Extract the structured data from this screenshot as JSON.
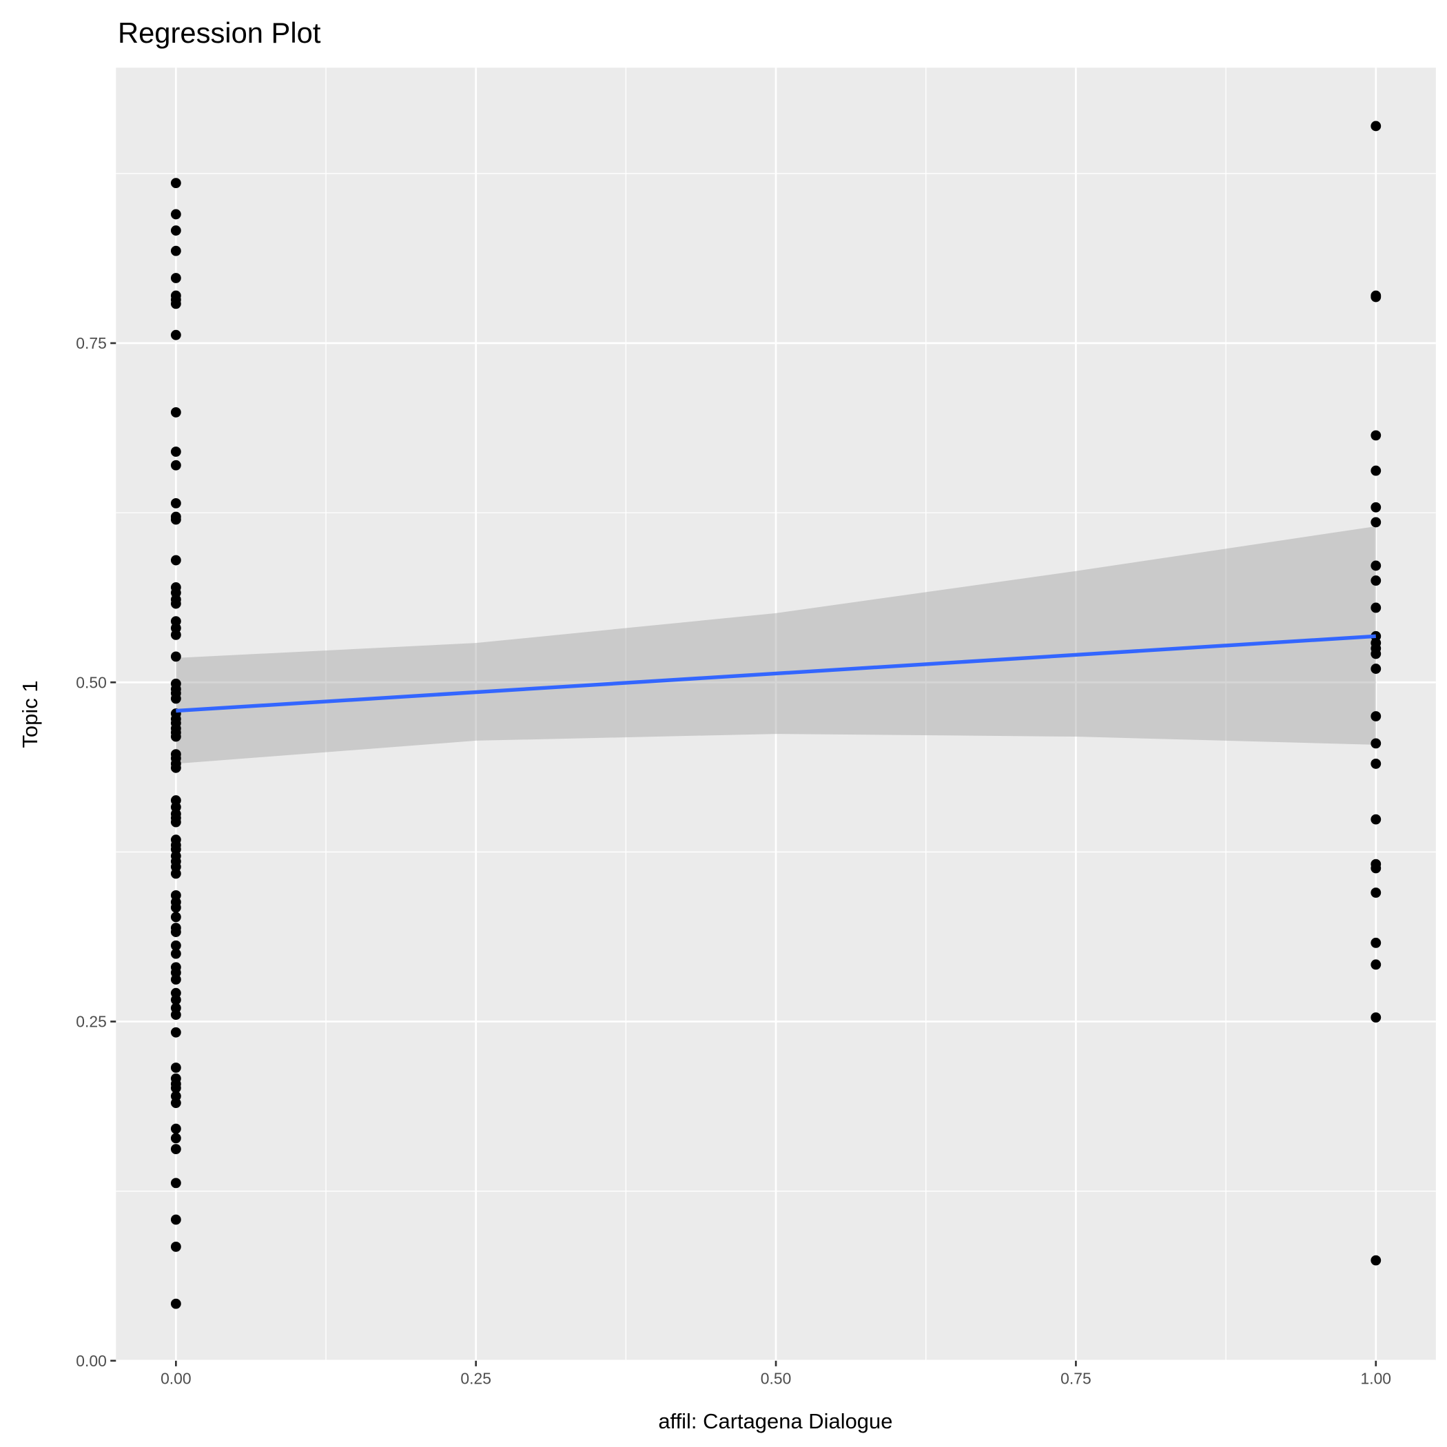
{
  "chart_data": {
    "type": "scatter",
    "title": "Regression Plot",
    "xlabel": "affil: Cartagena Dialogue",
    "ylabel": "Topic 1",
    "xlim": [
      -0.05,
      1.05
    ],
    "ylim": [
      0.0,
      0.953
    ],
    "grid": true,
    "legend": "none",
    "x_ticks": [
      0.0,
      0.25,
      0.5,
      0.75,
      1.0
    ],
    "x_tick_labels": [
      "0.00",
      "0.25",
      "0.50",
      "0.75",
      "1.00"
    ],
    "y_ticks": [
      0.0,
      0.25,
      0.5,
      0.75
    ],
    "y_tick_labels": [
      "0.00",
      "0.25",
      "0.50",
      "0.75"
    ],
    "colors": {
      "panel": "#ebebeb",
      "grid": "#ffffff",
      "points": "#000000",
      "line": "#3366ff",
      "ribbon": "#c0c0c0"
    },
    "series": [
      {
        "name": "x = 0",
        "x": 0,
        "y": [
          0.868,
          0.845,
          0.833,
          0.818,
          0.798,
          0.785,
          0.782,
          0.779,
          0.756,
          0.699,
          0.67,
          0.66,
          0.632,
          0.622,
          0.62,
          0.59,
          0.57,
          0.566,
          0.561,
          0.558,
          0.545,
          0.54,
          0.535,
          0.519,
          0.499,
          0.495,
          0.492,
          0.488,
          0.477,
          0.473,
          0.47,
          0.466,
          0.463,
          0.46,
          0.447,
          0.444,
          0.44,
          0.437,
          0.413,
          0.408,
          0.403,
          0.4,
          0.397,
          0.384,
          0.38,
          0.377,
          0.372,
          0.368,
          0.364,
          0.359,
          0.343,
          0.338,
          0.334,
          0.327,
          0.319,
          0.316,
          0.306,
          0.3,
          0.29,
          0.286,
          0.281,
          0.271,
          0.266,
          0.26,
          0.255,
          0.242,
          0.216,
          0.208,
          0.204,
          0.201,
          0.195,
          0.19,
          0.171,
          0.164,
          0.156,
          0.131,
          0.104,
          0.084,
          0.042
        ]
      },
      {
        "name": "x = 1",
        "x": 1,
        "y": [
          0.91,
          0.785,
          0.784,
          0.682,
          0.656,
          0.629,
          0.618,
          0.586,
          0.575,
          0.555,
          0.534,
          0.529,
          0.525,
          0.521,
          0.51,
          0.475,
          0.455,
          0.44,
          0.399,
          0.366,
          0.363,
          0.345,
          0.308,
          0.292,
          0.253,
          0.074
        ]
      }
    ],
    "regression": {
      "method": "lm",
      "fit": {
        "x": [
          0,
          1
        ],
        "y": [
          0.479,
          0.534
        ]
      },
      "ci": {
        "x": [
          0,
          0.25,
          0.5,
          0.75,
          1.0
        ],
        "lower": [
          0.44,
          0.457,
          0.462,
          0.46,
          0.454
        ],
        "upper": [
          0.518,
          0.529,
          0.551,
          0.582,
          0.615
        ]
      }
    }
  }
}
